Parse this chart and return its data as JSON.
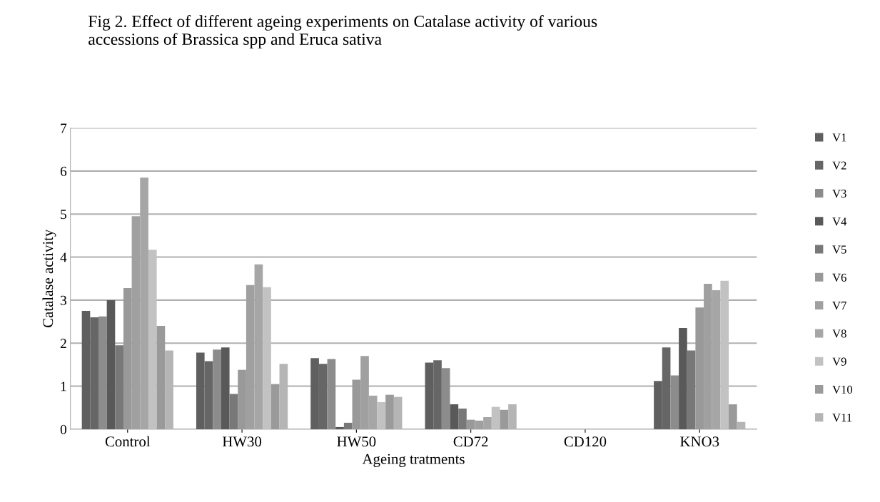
{
  "chart_data": {
    "type": "bar",
    "title": "Fig 2. Effect of different ageing experiments on Catalase activity of various\naccessions of Brassica spp and Eruca sativa",
    "xlabel": "Ageing tratments",
    "ylabel": "Catalase activity",
    "categories": [
      "Control",
      "HW30",
      "HW50",
      "CD72",
      "CD120",
      "KNO3"
    ],
    "series": [
      {
        "name": "V1",
        "color": "#5f5f5f",
        "values": [
          2.75,
          1.78,
          1.65,
          1.55,
          0,
          1.12
        ]
      },
      {
        "name": "V2",
        "color": "#666666",
        "values": [
          2.6,
          1.58,
          1.52,
          1.6,
          0,
          1.9
        ]
      },
      {
        "name": "V3",
        "color": "#8c8c8c",
        "values": [
          2.62,
          1.85,
          1.63,
          1.42,
          0,
          1.25
        ]
      },
      {
        "name": "V4",
        "color": "#595959",
        "values": [
          3.0,
          1.9,
          0.05,
          0.58,
          0,
          2.35
        ]
      },
      {
        "name": "V5",
        "color": "#787878",
        "values": [
          1.95,
          0.82,
          0.15,
          0.48,
          0,
          1.83
        ]
      },
      {
        "name": "V6",
        "color": "#999999",
        "values": [
          3.28,
          1.38,
          1.15,
          0.22,
          0,
          2.83
        ]
      },
      {
        "name": "V7",
        "color": "#a0a0a0",
        "values": [
          4.95,
          3.35,
          1.7,
          0.2,
          0,
          3.38
        ]
      },
      {
        "name": "V8",
        "color": "#a6a6a6",
        "values": [
          5.85,
          3.83,
          0.78,
          0.28,
          0,
          3.23
        ]
      },
      {
        "name": "V9",
        "color": "#c2c2c2",
        "values": [
          4.17,
          3.3,
          0.63,
          0.52,
          0,
          3.45
        ]
      },
      {
        "name": "V10",
        "color": "#9a9a9a",
        "values": [
          2.4,
          1.05,
          0.8,
          0.45,
          0,
          0.58
        ]
      },
      {
        "name": "V11",
        "color": "#b5b5b5",
        "values": [
          1.83,
          1.52,
          0.75,
          0.58,
          0,
          0.17
        ]
      }
    ],
    "ylim": [
      0,
      7
    ],
    "yticks": [
      0,
      1,
      2,
      3,
      4,
      5,
      6,
      7
    ],
    "grid": "y",
    "legend": "right"
  }
}
